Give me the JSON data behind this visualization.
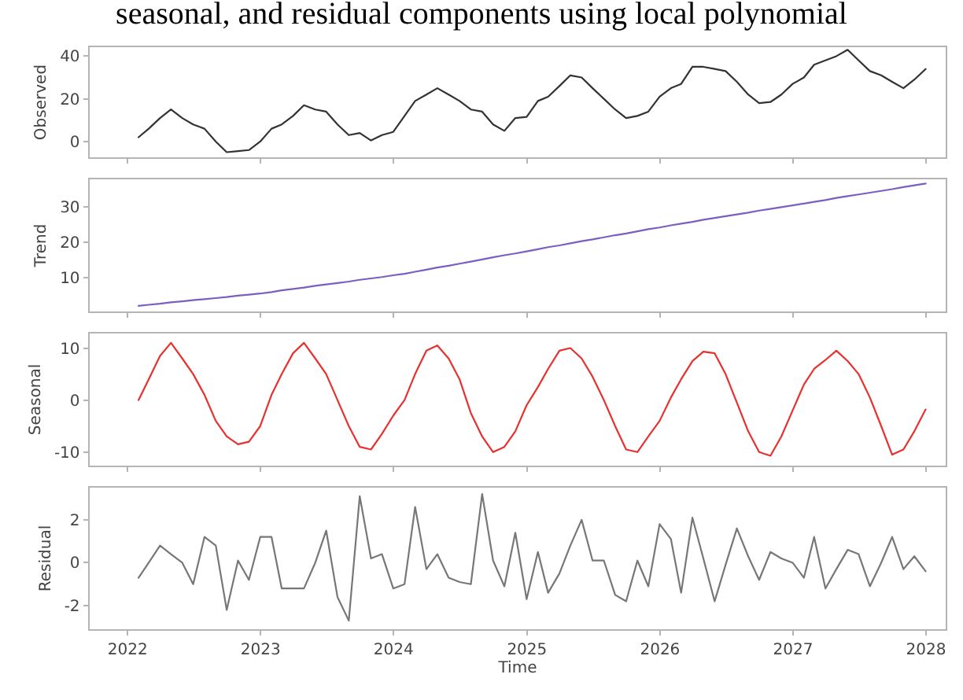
{
  "chart_data": [
    {
      "type": "line",
      "title": "seasonal, and residual components using local polynomial",
      "ylabel": "Observed",
      "tick_labels": "y",
      "color": "#333333",
      "x": [
        "2022-01-31",
        "2022-02-28",
        "2022-03-31",
        "2022-04-30",
        "2022-05-31",
        "2022-06-30",
        "2022-07-31",
        "2022-08-31",
        "2022-09-30",
        "2022-10-31",
        "2022-11-30",
        "2022-12-31",
        "2023-01-31",
        "2023-02-28",
        "2023-03-31",
        "2023-04-30",
        "2023-05-31",
        "2023-06-30",
        "2023-07-31",
        "2023-08-31",
        "2023-09-30",
        "2023-10-31",
        "2023-11-30",
        "2023-12-31",
        "2024-01-31",
        "2024-02-29",
        "2024-03-31",
        "2024-04-30",
        "2024-05-31",
        "2024-06-30",
        "2024-07-31",
        "2024-08-31",
        "2024-09-30",
        "2024-10-31",
        "2024-11-30",
        "2024-12-31",
        "2025-01-31",
        "2025-02-28",
        "2025-03-31",
        "2025-04-30",
        "2025-05-31",
        "2025-06-30",
        "2025-07-31",
        "2025-08-31",
        "2025-09-30",
        "2025-10-31",
        "2025-11-30",
        "2025-12-31",
        "2026-01-31",
        "2026-02-28",
        "2026-03-31",
        "2026-04-30",
        "2026-05-31",
        "2026-06-30",
        "2026-07-31",
        "2026-08-31",
        "2026-09-30",
        "2026-10-31",
        "2026-11-30",
        "2026-12-31",
        "2027-01-31",
        "2027-02-28",
        "2027-03-31",
        "2027-04-30",
        "2027-05-31",
        "2027-06-30",
        "2027-07-31",
        "2027-08-31",
        "2027-09-30",
        "2027-10-31",
        "2027-11-30",
        "2027-12-31"
      ],
      "values": [
        2,
        6,
        11,
        15,
        11,
        8,
        6,
        0,
        -5,
        -4.5,
        -4,
        0,
        6,
        8,
        12,
        17,
        15,
        14,
        8,
        3,
        4,
        0.5,
        3,
        4.5,
        12,
        19,
        22,
        25,
        22,
        19,
        15,
        14,
        8,
        5,
        11,
        11.5,
        19,
        21,
        26,
        31,
        30,
        25,
        20,
        15,
        11,
        12,
        14,
        21,
        25,
        27,
        35,
        35,
        34,
        33,
        28,
        22,
        18,
        18.5,
        22,
        27,
        30,
        36,
        38,
        40,
        43,
        38,
        33,
        31,
        28,
        25,
        29,
        34
      ],
      "xlim": [
        "2021-09-19",
        "2028-02-24"
      ],
      "xticks": [
        "2022",
        "2023",
        "2024",
        "2025",
        "2026",
        "2027",
        "2028"
      ],
      "ylim": [
        -7.4,
        44.2
      ],
      "yticks": [
        0,
        20,
        40
      ]
    },
    {
      "type": "line",
      "ylabel": "Trend",
      "tick_labels": "y",
      "color": "#7b5fc0",
      "x": [
        "2022-01-31",
        "2022-02-28",
        "2022-03-31",
        "2022-04-30",
        "2022-05-31",
        "2022-06-30",
        "2022-07-31",
        "2022-08-31",
        "2022-09-30",
        "2022-10-31",
        "2022-11-30",
        "2022-12-31",
        "2023-01-31",
        "2023-02-28",
        "2023-03-31",
        "2023-04-30",
        "2023-05-31",
        "2023-06-30",
        "2023-07-31",
        "2023-08-31",
        "2023-09-30",
        "2023-10-31",
        "2023-11-30",
        "2023-12-31",
        "2024-01-31",
        "2024-02-29",
        "2024-03-31",
        "2024-04-30",
        "2024-05-31",
        "2024-06-30",
        "2024-07-31",
        "2024-08-31",
        "2024-09-30",
        "2024-10-31",
        "2024-11-30",
        "2024-12-31",
        "2025-01-31",
        "2025-02-28",
        "2025-03-31",
        "2025-04-30",
        "2025-05-31",
        "2025-06-30",
        "2025-07-31",
        "2025-08-31",
        "2025-09-30",
        "2025-10-31",
        "2025-11-30",
        "2025-12-31",
        "2026-01-31",
        "2026-02-28",
        "2026-03-31",
        "2026-04-30",
        "2026-05-31",
        "2026-06-30",
        "2026-07-31",
        "2026-08-31",
        "2026-09-30",
        "2026-10-31",
        "2026-11-30",
        "2026-12-31",
        "2027-01-31",
        "2027-02-28",
        "2027-03-31",
        "2027-04-30",
        "2027-05-31",
        "2027-06-30",
        "2027-07-31",
        "2027-08-31",
        "2027-09-30",
        "2027-10-31",
        "2027-11-30",
        "2027-12-31"
      ],
      "values": [
        1.9,
        2.2,
        2.5,
        2.9,
        3.2,
        3.5,
        3.8,
        4.1,
        4.4,
        4.8,
        5.1,
        5.4,
        5.8,
        6.3,
        6.7,
        7.1,
        7.6,
        8.0,
        8.4,
        8.8,
        9.3,
        9.7,
        10.1,
        10.6,
        11,
        11.6,
        12.2,
        12.8,
        13.3,
        13.9,
        14.5,
        15.1,
        15.7,
        16.3,
        16.8,
        17.4,
        18,
        18.6,
        19.1,
        19.7,
        20.3,
        20.8,
        21.4,
        22,
        22.5,
        23.1,
        23.7,
        24.2,
        24.8,
        25.3,
        25.8,
        26.4,
        26.9,
        27.4,
        27.9,
        28.4,
        29,
        29.5,
        30,
        30.5,
        31,
        31.5,
        32,
        32.6,
        33.1,
        33.6,
        34.1,
        34.6,
        35.1,
        35.7,
        36.2,
        36.7
      ],
      "xlim": [
        "2021-09-19",
        "2028-02-24"
      ],
      "xticks": [
        "2022",
        "2023",
        "2024",
        "2025",
        "2026",
        "2027",
        "2028"
      ],
      "ylim": [
        0.3,
        37.9
      ],
      "yticks": [
        10,
        20,
        30
      ]
    },
    {
      "type": "line",
      "ylabel": "Seasonal",
      "tick_labels": "y",
      "color": "#e8312f",
      "x": [
        "2022-01-31",
        "2022-02-28",
        "2022-03-31",
        "2022-04-30",
        "2022-05-31",
        "2022-06-30",
        "2022-07-31",
        "2022-08-31",
        "2022-09-30",
        "2022-10-31",
        "2022-11-30",
        "2022-12-31",
        "2023-01-31",
        "2023-02-28",
        "2023-03-31",
        "2023-04-30",
        "2023-05-31",
        "2023-06-30",
        "2023-07-31",
        "2023-08-31",
        "2023-09-30",
        "2023-10-31",
        "2023-11-30",
        "2023-12-31",
        "2024-01-31",
        "2024-02-29",
        "2024-03-31",
        "2024-04-30",
        "2024-05-31",
        "2024-06-30",
        "2024-07-31",
        "2024-08-31",
        "2024-09-30",
        "2024-10-31",
        "2024-11-30",
        "2024-12-31",
        "2025-01-31",
        "2025-02-28",
        "2025-03-31",
        "2025-04-30",
        "2025-05-31",
        "2025-06-30",
        "2025-07-31",
        "2025-08-31",
        "2025-09-30",
        "2025-10-31",
        "2025-11-30",
        "2025-12-31",
        "2026-01-31",
        "2026-02-28",
        "2026-03-31",
        "2026-04-30",
        "2026-05-31",
        "2026-06-30",
        "2026-07-31",
        "2026-08-31",
        "2026-09-30",
        "2026-10-31",
        "2026-11-30",
        "2026-12-31",
        "2027-01-31",
        "2027-02-28",
        "2027-03-31",
        "2027-04-30",
        "2027-05-31",
        "2027-06-30",
        "2027-07-31",
        "2027-08-31",
        "2027-09-30",
        "2027-10-31",
        "2027-11-30",
        "2027-12-31"
      ],
      "values": [
        0,
        4,
        8.5,
        11,
        8,
        5,
        1,
        -4,
        -7,
        -8.5,
        -8,
        -5,
        1,
        5,
        9,
        11,
        8,
        5,
        0,
        -5,
        -9,
        -9.5,
        -6.5,
        -3,
        0,
        5,
        9.5,
        10.5,
        8,
        4,
        -2.5,
        -7,
        -10,
        -9,
        -6,
        -1,
        2.5,
        6,
        9.5,
        10,
        8,
        4.5,
        0,
        -5,
        -9.5,
        -10,
        -7,
        -4,
        0.5,
        4,
        7.5,
        9.3,
        9,
        5,
        -0.5,
        -6,
        -10,
        -10.7,
        -7,
        -2,
        3,
        6,
        7.7,
        9.5,
        7.5,
        5,
        0.5,
        -5,
        -10.5,
        -9.5,
        -6,
        -1.8
      ],
      "xlim": [
        "2021-09-19",
        "2028-02-24"
      ],
      "xticks": [
        "2022",
        "2023",
        "2024",
        "2025",
        "2026",
        "2027",
        "2028"
      ],
      "ylim": [
        -12.6,
        12.8
      ],
      "yticks": [
        -10,
        0,
        10
      ]
    },
    {
      "type": "line",
      "ylabel": "Residual",
      "xlabel": "Time",
      "color": "#777777",
      "x": [
        "2022-01-31",
        "2022-02-28",
        "2022-03-31",
        "2022-04-30",
        "2022-05-31",
        "2022-06-30",
        "2022-07-31",
        "2022-08-31",
        "2022-09-30",
        "2022-10-31",
        "2022-11-30",
        "2022-12-31",
        "2023-01-31",
        "2023-02-28",
        "2023-03-31",
        "2023-04-30",
        "2023-05-31",
        "2023-06-30",
        "2023-07-31",
        "2023-08-31",
        "2023-09-30",
        "2023-10-31",
        "2023-11-30",
        "2023-12-31",
        "2024-01-31",
        "2024-02-29",
        "2024-03-31",
        "2024-04-30",
        "2024-05-31",
        "2024-06-30",
        "2024-07-31",
        "2024-08-31",
        "2024-09-30",
        "2024-10-31",
        "2024-11-30",
        "2024-12-31",
        "2025-01-31",
        "2025-02-28",
        "2025-03-31",
        "2025-04-30",
        "2025-05-31",
        "2025-06-30",
        "2025-07-31",
        "2025-08-31",
        "2025-09-30",
        "2025-10-31",
        "2025-11-30",
        "2025-12-31",
        "2026-01-31",
        "2026-02-28",
        "2026-03-31",
        "2026-04-30",
        "2026-05-31",
        "2026-06-30",
        "2026-07-31",
        "2026-08-31",
        "2026-09-30",
        "2026-10-31",
        "2026-11-30",
        "2026-12-31",
        "2027-01-31",
        "2027-02-28",
        "2027-03-31",
        "2027-04-30",
        "2027-05-31",
        "2027-06-30",
        "2027-07-31",
        "2027-08-31",
        "2027-09-30",
        "2027-10-31",
        "2027-11-30",
        "2027-12-31"
      ],
      "values": [
        -0.7,
        0,
        0.8,
        0.4,
        0,
        -1,
        1.2,
        0.8,
        -2.2,
        0.1,
        -0.8,
        1.2,
        1.2,
        -1.2,
        -1.2,
        -1.2,
        0,
        1.5,
        -1.6,
        -2.7,
        3.1,
        0.2,
        0.4,
        -1.2,
        -1,
        2.6,
        -0.3,
        0.4,
        -0.7,
        -0.9,
        -1,
        3.2,
        0.1,
        -1.1,
        1.4,
        -1.7,
        0.5,
        -1.4,
        -0.5,
        0.8,
        2,
        0.1,
        0.1,
        -1.5,
        -1.8,
        0.1,
        -1.1,
        1.8,
        1.1,
        -1.4,
        2.1,
        0.2,
        -1.8,
        -0.1,
        1.6,
        0.3,
        -0.8,
        0.5,
        0.2,
        0,
        -0.7,
        1.2,
        -1.2,
        -0.3,
        0.6,
        0.4,
        -1.1,
        0,
        1.2,
        -0.3,
        0.3,
        -0.4
      ],
      "xlim": [
        "2021-09-19",
        "2028-02-24"
      ],
      "xticks": [
        "2022",
        "2023",
        "2024",
        "2025",
        "2026",
        "2027",
        "2028"
      ],
      "ylim": [
        -3.1,
        3.5
      ],
      "yticks": [
        -2,
        0,
        2
      ]
    }
  ]
}
